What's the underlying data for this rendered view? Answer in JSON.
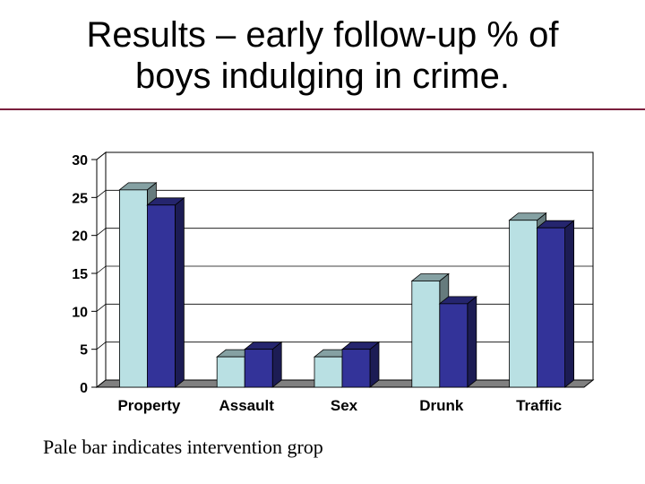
{
  "slide": {
    "title_line1": "Results – early follow-up % of",
    "title_line2": "boys indulging in crime.",
    "caption": "Pale bar indicates intervention grop",
    "rule_color": "#7a1f3d"
  },
  "chart_data": {
    "type": "bar",
    "categories": [
      "Property",
      "Assault",
      "Sex",
      "Drunk",
      "Traffic"
    ],
    "series": [
      {
        "values": [
          26,
          4,
          4,
          14,
          22
        ],
        "color": "#b9e0e3"
      },
      {
        "values": [
          24,
          5,
          5,
          11,
          21
        ],
        "color": "#333399"
      }
    ],
    "ylim": [
      0,
      30
    ],
    "yticks": [
      "0",
      "5",
      "10",
      "15",
      "20",
      "25",
      "30"
    ],
    "grid": true,
    "style": "3d"
  }
}
